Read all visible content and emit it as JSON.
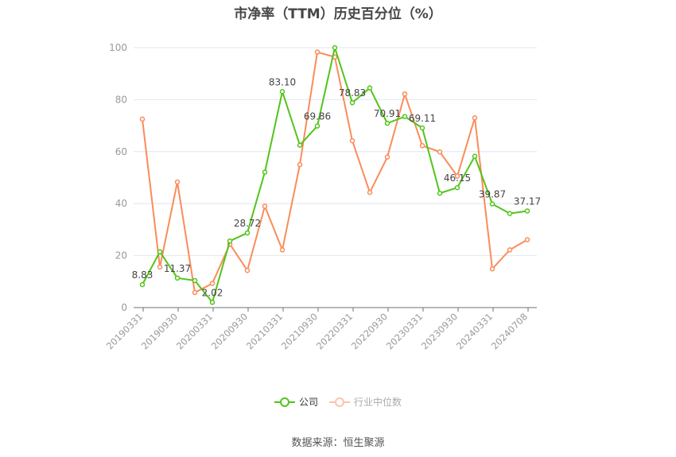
{
  "title": "市净率（TTM）历史百分位（%）",
  "legend": [
    {
      "label": "公司",
      "color": "#52C41A"
    },
    {
      "label": "行业中位数",
      "color": "#FA8C5A"
    }
  ],
  "source": "数据来源：恒生聚源",
  "chart_data": {
    "type": "line",
    "title": "市净率（TTM）历史百分位（%）",
    "xlabel": "",
    "ylabel": "",
    "ylim": [
      0,
      100
    ],
    "yticks": [
      0,
      20,
      40,
      60,
      80,
      100
    ],
    "grid": true,
    "legend_position": "bottom",
    "categories": [
      "20190331",
      "20190630",
      "20190930",
      "20191231",
      "20200331",
      "20200630",
      "20200930",
      "20201231",
      "20210331",
      "20210630",
      "20210930",
      "20211231",
      "20220331",
      "20220630",
      "20220930",
      "20221231",
      "20230331",
      "20230630",
      "20230930",
      "20231231",
      "20240331",
      "20240630",
      "20240708"
    ],
    "xtick_labels": [
      "20190331",
      "20190930",
      "20200331",
      "20200930",
      "20210331",
      "20210930",
      "20220331",
      "20220930",
      "20230331",
      "20230930",
      "20240331",
      "20240708"
    ],
    "series": [
      {
        "name": "公司",
        "color": "#52C41A",
        "values": [
          8.83,
          21.5,
          11.37,
          10.4,
          2.02,
          25.6,
          28.72,
          52.1,
          83.1,
          62.5,
          69.86,
          100,
          78.83,
          84.5,
          70.91,
          73.5,
          69.11,
          44.0,
          46.15,
          58.2,
          39.87,
          36.2,
          37.17
        ],
        "labels": {
          "0": "8.83",
          "2": "11.37",
          "4": "2.02",
          "6": "28.72",
          "8": "83.10",
          "10": "69.86",
          "12": "78.83",
          "14": "70.91",
          "16": "69.11",
          "18": "46.15",
          "20": "39.87",
          "22": "37.17"
        }
      },
      {
        "name": "行业中位数",
        "color": "#FA8C5A",
        "values": [
          72.5,
          15.6,
          48.3,
          5.8,
          9.3,
          24.4,
          14.3,
          39.0,
          22.2,
          55.0,
          98.3,
          96.4,
          64.2,
          44.3,
          57.9,
          82.2,
          62.3,
          59.9,
          50.6,
          73.0,
          14.9,
          22.2,
          26.1
        ]
      }
    ]
  }
}
